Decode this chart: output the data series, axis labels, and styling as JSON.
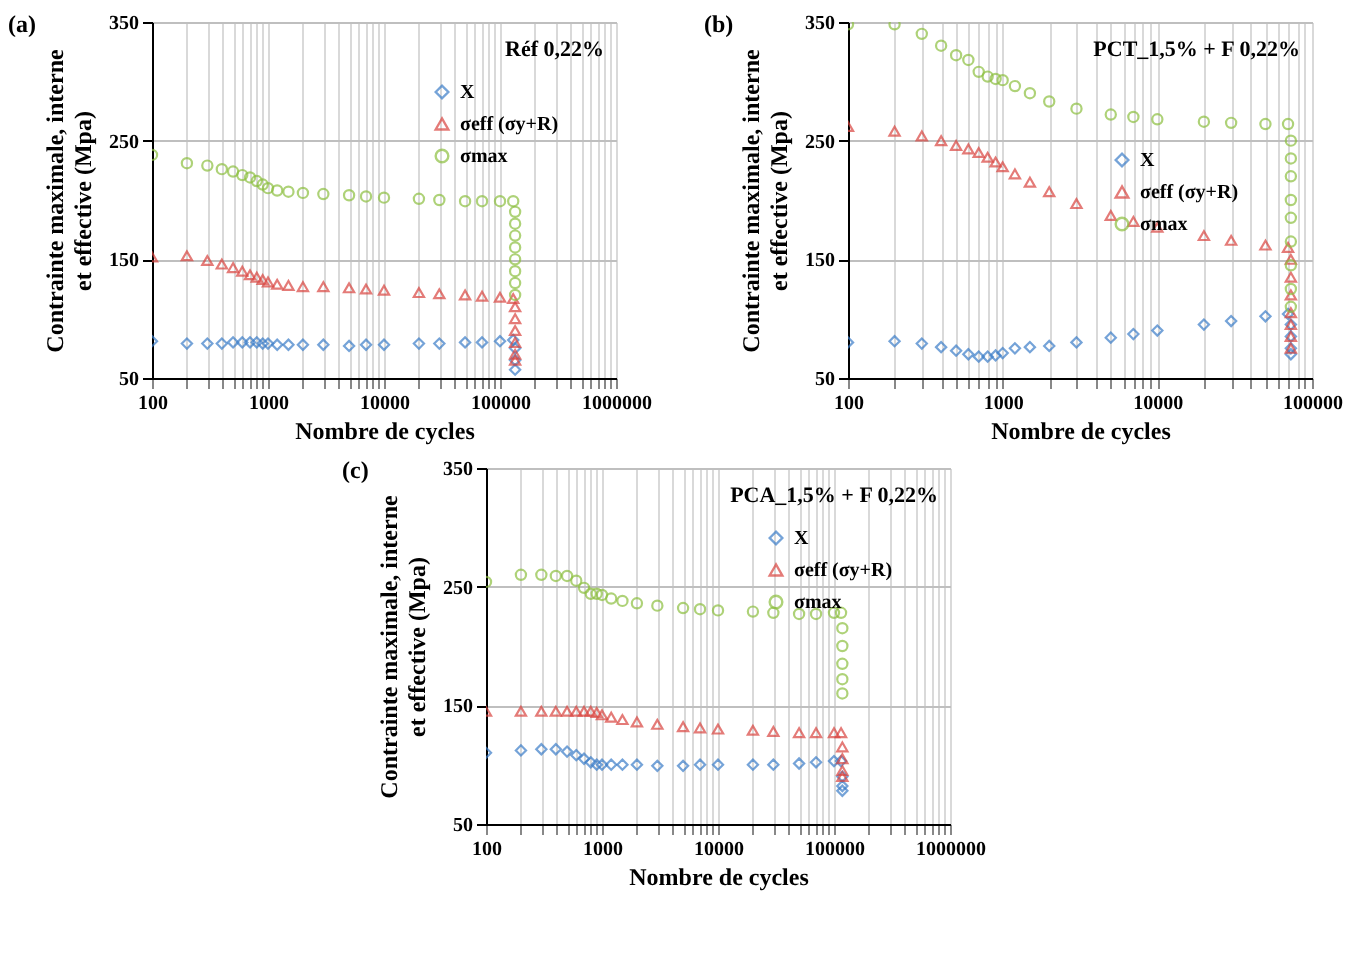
{
  "chart_data": [
    {
      "type": "scatter",
      "title": "Réf 0,22%",
      "annotations": [
        "(a)"
      ],
      "xlabel": "Nombre de cycles",
      "ylabel": "Contrainte maximale, interne et effective (Mpa)",
      "log": "x",
      "grid": true,
      "legend": "top right",
      "xlim": [
        100,
        1000000
      ],
      "xticks": [
        100,
        {
          "value": 200,
          "label": null
        },
        {
          "value": 300,
          "label": null
        },
        {
          "value": 400,
          "label": null
        },
        {
          "value": 500,
          "label": null
        },
        {
          "value": 600,
          "label": null
        },
        {
          "value": 700,
          "label": null
        },
        {
          "value": 800,
          "label": null
        },
        {
          "value": 900,
          "label": null
        },
        1000,
        {
          "value": 2000,
          "label": null
        },
        {
          "value": 3000,
          "label": null
        },
        {
          "value": 4000,
          "label": null
        },
        {
          "value": 5000,
          "label": null
        },
        {
          "value": 6000,
          "label": null
        },
        {
          "value": 7000,
          "label": null
        },
        {
          "value": 8000,
          "label": null
        },
        {
          "value": 9000,
          "label": null
        },
        10000,
        {
          "value": 20000,
          "label": null
        },
        {
          "value": 30000,
          "label": null
        },
        {
          "value": 40000,
          "label": null
        },
        {
          "value": 50000,
          "label": null
        },
        {
          "value": 60000,
          "label": null
        },
        {
          "value": 70000,
          "label": null
        },
        {
          "value": 80000,
          "label": null
        },
        {
          "value": 90000,
          "label": null
        },
        100000,
        {
          "value": 200000,
          "label": null
        },
        {
          "value": 300000,
          "label": null
        },
        {
          "value": 400000,
          "label": null
        },
        {
          "value": 500000,
          "label": null
        },
        {
          "value": 600000,
          "label": null
        },
        {
          "value": 700000,
          "label": null
        },
        {
          "value": 800000,
          "label": null
        },
        {
          "value": 900000,
          "label": null
        },
        1000000
      ],
      "ylim": [
        50,
        350
      ],
      "yticks": [
        50,
        150,
        250,
        350
      ],
      "series": [
        {
          "name": "X",
          "color": "#3b7dc8",
          "marker": "diamond",
          "x": [
            100,
            200,
            300,
            400,
            500,
            600,
            700,
            800,
            900,
            1000,
            1200,
            1500,
            2000,
            3000,
            5000,
            7000,
            10000,
            20000,
            30000,
            50000,
            70000,
            100000,
            130000,
            135000,
            135000,
            135000
          ],
          "values": [
            81,
            79,
            79,
            79,
            80,
            80,
            80,
            80,
            79,
            79,
            78,
            78,
            78,
            78,
            77,
            78,
            78,
            79,
            79,
            80,
            80,
            81,
            82,
            75,
            65,
            57
          ]
        },
        {
          "name": "σeff (σy+R)",
          "color": "#d9443f",
          "marker": "triangle",
          "x": [
            100,
            200,
            300,
            400,
            500,
            600,
            700,
            800,
            900,
            1000,
            1200,
            1500,
            2000,
            3000,
            5000,
            7000,
            10000,
            20000,
            30000,
            50000,
            70000,
            100000,
            130000,
            135000,
            135000,
            135000,
            135000,
            135000,
            135000
          ],
          "values": [
            152,
            153,
            149,
            146,
            143,
            140,
            137,
            135,
            133,
            131,
            129,
            128,
            127,
            127,
            126,
            125,
            124,
            122,
            121,
            120,
            119,
            118,
            117,
            110,
            100,
            90,
            80,
            70,
            65
          ]
        },
        {
          "name": "σmax",
          "color": "#8cbf3f",
          "marker": "circle",
          "x": [
            100,
            200,
            300,
            400,
            500,
            600,
            700,
            800,
            900,
            1000,
            1200,
            1500,
            2000,
            3000,
            5000,
            7000,
            10000,
            20000,
            30000,
            50000,
            70000,
            100000,
            130000,
            135000,
            135000,
            135000,
            135000,
            135000,
            135000,
            135000,
            135000
          ],
          "values": [
            238,
            231,
            229,
            226,
            224,
            221,
            219,
            216,
            213,
            210,
            208,
            207,
            206,
            205,
            204,
            203,
            202,
            201,
            200,
            199,
            199,
            199,
            199,
            190,
            180,
            170,
            160,
            150,
            140,
            130,
            120
          ]
        }
      ]
    },
    {
      "type": "scatter",
      "title": "PCT_1,5% + F 0,22%",
      "annotations": [
        "(b)"
      ],
      "xlabel": "Nombre de cycles",
      "ylabel": "Contrainte maximale, interne et effective (Mpa)",
      "log": "x",
      "grid": true,
      "legend": "right",
      "xlim": [
        100,
        100000
      ],
      "xticks": [
        100,
        {
          "value": 200,
          "label": null
        },
        {
          "value": 300,
          "label": null
        },
        {
          "value": 400,
          "label": null
        },
        {
          "value": 500,
          "label": null
        },
        {
          "value": 600,
          "label": null
        },
        {
          "value": 700,
          "label": null
        },
        {
          "value": 800,
          "label": null
        },
        {
          "value": 900,
          "label": null
        },
        1000,
        {
          "value": 2000,
          "label": null
        },
        {
          "value": 3000,
          "label": null
        },
        {
          "value": 4000,
          "label": null
        },
        {
          "value": 5000,
          "label": null
        },
        {
          "value": 6000,
          "label": null
        },
        {
          "value": 7000,
          "label": null
        },
        {
          "value": 8000,
          "label": null
        },
        {
          "value": 9000,
          "label": null
        },
        10000,
        {
          "value": 20000,
          "label": null
        },
        {
          "value": 30000,
          "label": null
        },
        {
          "value": 40000,
          "label": null
        },
        {
          "value": 50000,
          "label": null
        },
        {
          "value": 60000,
          "label": null
        },
        {
          "value": 70000,
          "label": null
        },
        {
          "value": 80000,
          "label": null
        },
        {
          "value": 90000,
          "label": null
        },
        100000
      ],
      "ylim": [
        50,
        350
      ],
      "yticks": [
        50,
        150,
        250,
        350
      ],
      "series": [
        {
          "name": "X",
          "color": "#3b7dc8",
          "marker": "diamond",
          "x": [
            100,
            200,
            300,
            400,
            500,
            600,
            700,
            800,
            900,
            1000,
            1200,
            1500,
            2000,
            3000,
            5000,
            7000,
            10000,
            20000,
            30000,
            50000,
            70000,
            73000,
            73000,
            73000,
            73000
          ],
          "values": [
            80,
            81,
            79,
            76,
            73,
            70,
            68,
            68,
            69,
            71,
            75,
            76,
            77,
            80,
            84,
            87,
            90,
            95,
            98,
            102,
            104,
            95,
            85,
            75,
            70
          ]
        },
        {
          "name": "σeff (σy+R)",
          "color": "#d9443f",
          "marker": "triangle",
          "x": [
            100,
            200,
            300,
            400,
            500,
            600,
            700,
            800,
            900,
            1000,
            1200,
            1500,
            2000,
            3000,
            5000,
            7000,
            10000,
            20000,
            30000,
            50000,
            70000,
            73000,
            73000,
            73000,
            73000,
            73000,
            73000,
            73000
          ],
          "values": [
            262,
            258,
            254,
            250,
            246,
            243,
            240,
            236,
            232,
            228,
            222,
            215,
            207,
            197,
            187,
            182,
            177,
            170,
            166,
            162,
            160,
            150,
            135,
            120,
            105,
            95,
            85,
            75
          ]
        },
        {
          "name": "σmax",
          "color": "#8cbf3f",
          "marker": "circle",
          "x": [
            100,
            200,
            300,
            400,
            500,
            600,
            700,
            800,
            900,
            1000,
            1200,
            1500,
            2000,
            3000,
            5000,
            7000,
            10000,
            20000,
            30000,
            50000,
            70000,
            73000,
            73000,
            73000,
            73000,
            73000,
            73000,
            73000,
            73000,
            73000
          ],
          "values": [
            348,
            348,
            340,
            330,
            322,
            318,
            308,
            304,
            302,
            301,
            296,
            290,
            283,
            277,
            272,
            270,
            268,
            266,
            265,
            264,
            264,
            250,
            235,
            220,
            200,
            185,
            165,
            145,
            125,
            110
          ]
        }
      ]
    },
    {
      "type": "scatter",
      "title": "PCA_1,5% + F 0,22%",
      "annotations": [
        "(c)"
      ],
      "xlabel": "Nombre de cycles",
      "ylabel": "Contrainte maximale, interne et effective (Mpa)",
      "log": "x",
      "grid": true,
      "legend": "top right",
      "xlim": [
        100,
        1000000
      ],
      "xticks": [
        100,
        {
          "value": 200,
          "label": null
        },
        {
          "value": 300,
          "label": null
        },
        {
          "value": 400,
          "label": null
        },
        {
          "value": 500,
          "label": null
        },
        {
          "value": 600,
          "label": null
        },
        {
          "value": 700,
          "label": null
        },
        {
          "value": 800,
          "label": null
        },
        {
          "value": 900,
          "label": null
        },
        1000,
        {
          "value": 2000,
          "label": null
        },
        {
          "value": 3000,
          "label": null
        },
        {
          "value": 4000,
          "label": null
        },
        {
          "value": 5000,
          "label": null
        },
        {
          "value": 6000,
          "label": null
        },
        {
          "value": 7000,
          "label": null
        },
        {
          "value": 8000,
          "label": null
        },
        {
          "value": 9000,
          "label": null
        },
        10000,
        {
          "value": 20000,
          "label": null
        },
        {
          "value": 30000,
          "label": null
        },
        {
          "value": 40000,
          "label": null
        },
        {
          "value": 50000,
          "label": null
        },
        {
          "value": 60000,
          "label": null
        },
        {
          "value": 70000,
          "label": null
        },
        {
          "value": 80000,
          "label": null
        },
        {
          "value": 90000,
          "label": null
        },
        100000,
        {
          "value": 200000,
          "label": null
        },
        {
          "value": 300000,
          "label": null
        },
        {
          "value": 400000,
          "label": null
        },
        {
          "value": 500000,
          "label": null
        },
        {
          "value": 600000,
          "label": null
        },
        {
          "value": 700000,
          "label": null
        },
        {
          "value": 800000,
          "label": null
        },
        {
          "value": 900000,
          "label": null
        },
        1000000
      ],
      "ylim": [
        50,
        350
      ],
      "yticks": [
        50,
        150,
        250,
        350
      ],
      "series": [
        {
          "name": "X",
          "color": "#3b7dc8",
          "marker": "diamond",
          "x": [
            100,
            200,
            300,
            400,
            500,
            600,
            700,
            800,
            900,
            1000,
            1200,
            1500,
            2000,
            3000,
            5000,
            7000,
            10000,
            20000,
            30000,
            50000,
            70000,
            100000,
            115000,
            118000,
            118000,
            118000
          ],
          "values": [
            110,
            112,
            113,
            113,
            111,
            108,
            105,
            102,
            100,
            100,
            100,
            100,
            100,
            99,
            99,
            100,
            100,
            100,
            100,
            101,
            102,
            103,
            103,
            90,
            82,
            78
          ]
        },
        {
          "name": "σeff (σy+R)",
          "color": "#d9443f",
          "marker": "triangle",
          "x": [
            100,
            200,
            300,
            400,
            500,
            600,
            700,
            800,
            900,
            1000,
            1200,
            1500,
            2000,
            3000,
            5000,
            7000,
            10000,
            20000,
            30000,
            50000,
            70000,
            100000,
            115000,
            118000,
            118000,
            118000,
            118000
          ],
          "values": [
            145,
            145,
            145,
            145,
            145,
            145,
            145,
            145,
            144,
            142,
            140,
            138,
            136,
            134,
            132,
            131,
            130,
            129,
            128,
            127,
            127,
            127,
            127,
            115,
            105,
            95,
            90
          ]
        },
        {
          "name": "σmax",
          "color": "#8cbf3f",
          "marker": "circle",
          "x": [
            100,
            200,
            300,
            400,
            500,
            600,
            700,
            800,
            900,
            1000,
            1200,
            1500,
            2000,
            3000,
            5000,
            7000,
            10000,
            20000,
            30000,
            50000,
            70000,
            100000,
            115000,
            118000,
            118000,
            118000,
            118000,
            118000
          ],
          "values": [
            254,
            260,
            260,
            259,
            259,
            255,
            249,
            244,
            244,
            243,
            240,
            238,
            236,
            234,
            232,
            231,
            230,
            229,
            228,
            227,
            227,
            228,
            228,
            215,
            200,
            185,
            172,
            160
          ]
        }
      ]
    }
  ]
}
